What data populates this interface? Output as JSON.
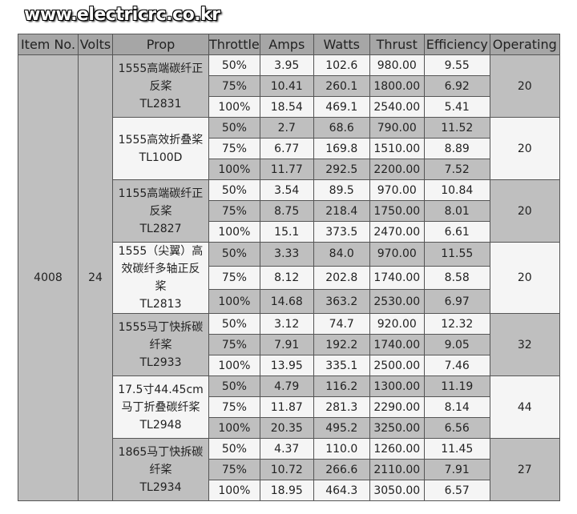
{
  "watermark": "www.electricrc.co.kr",
  "table": {
    "header": [
      "Item No.",
      "Volts",
      "Prop",
      "Throttle",
      "Amps",
      "Watts",
      "Thrust",
      "Efficiency",
      "Operating"
    ],
    "item_no": "4008",
    "volts": "24",
    "groups": [
      {
        "prop": [
          "1555高端碳纤正",
          "反桨",
          "TL2831"
        ],
        "operating": "20",
        "rows": [
          [
            "50%",
            "3.95",
            "102.6",
            "980.00",
            "9.55"
          ],
          [
            "75%",
            "10.41",
            "260.1",
            "1800.00",
            "6.92"
          ],
          [
            "100%",
            "18.54",
            "469.1",
            "2540.00",
            "5.41"
          ]
        ]
      },
      {
        "prop": [
          "1555高效折叠桨",
          "TL100D"
        ],
        "operating": "20",
        "rows": [
          [
            "50%",
            "2.7",
            "68.6",
            "790.00",
            "11.52"
          ],
          [
            "75%",
            "6.77",
            "169.8",
            "1510.00",
            "8.89"
          ],
          [
            "100%",
            "11.77",
            "292.5",
            "2200.00",
            "7.52"
          ]
        ]
      },
      {
        "prop": [
          "1155高端碳纤正",
          "反桨",
          "TL2827"
        ],
        "operating": "20",
        "rows": [
          [
            "50%",
            "3.54",
            "89.5",
            "970.00",
            "10.84"
          ],
          [
            "75%",
            "8.75",
            "218.4",
            "1750.00",
            "8.01"
          ],
          [
            "100%",
            "15.1",
            "373.5",
            "2470.00",
            "6.61"
          ]
        ]
      },
      {
        "prop": [
          "1555（尖翼）高",
          "效碳纤多轴正反",
          "桨",
          "TL2813"
        ],
        "operating": "20",
        "rows": [
          [
            "50%",
            "3.33",
            "84.0",
            "970.00",
            "11.55"
          ],
          [
            "75%",
            "8.12",
            "202.8",
            "1740.00",
            "8.58"
          ],
          [
            "100%",
            "14.68",
            "363.2",
            "2530.00",
            "6.97"
          ]
        ]
      },
      {
        "prop": [
          "1555马丁快拆碳",
          "纤桨",
          "TL2933"
        ],
        "operating": "32",
        "rows": [
          [
            "50%",
            "3.12",
            "74.7",
            "920.00",
            "12.32"
          ],
          [
            "75%",
            "7.91",
            "192.2",
            "1740.00",
            "9.05"
          ],
          [
            "100%",
            "13.95",
            "335.1",
            "2500.00",
            "7.46"
          ]
        ]
      },
      {
        "prop": [
          "17.5寸44.45cm",
          "马丁折叠碳纤桨",
          "TL2948"
        ],
        "operating": "44",
        "rows": [
          [
            "50%",
            "4.79",
            "116.2",
            "1300.00",
            "11.19"
          ],
          [
            "75%",
            "11.87",
            "281.3",
            "2290.00",
            "8.14"
          ],
          [
            "100%",
            "20.35",
            "495.2",
            "3250.00",
            "6.56"
          ]
        ]
      },
      {
        "prop": [
          "1865马丁快拆碳",
          "纤桨",
          "TL2934"
        ],
        "operating": "27",
        "rows": [
          [
            "50%",
            "4.37",
            "110.0",
            "1260.00",
            "11.45"
          ],
          [
            "75%",
            "10.72",
            "266.6",
            "2110.00",
            "7.91"
          ],
          [
            "100%",
            "18.95",
            "464.3",
            "3050.00",
            "6.57"
          ]
        ]
      }
    ]
  }
}
